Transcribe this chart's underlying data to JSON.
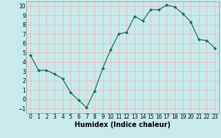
{
  "xlabel": "Humidex (Indice chaleur)",
  "x": [
    0,
    1,
    2,
    3,
    4,
    5,
    6,
    7,
    8,
    9,
    10,
    11,
    12,
    13,
    14,
    15,
    16,
    17,
    18,
    19,
    20,
    21,
    22,
    23
  ],
  "y": [
    4.7,
    3.1,
    3.1,
    2.7,
    2.2,
    0.7,
    -0.1,
    -0.9,
    0.9,
    3.3,
    5.3,
    7.0,
    7.2,
    8.9,
    8.4,
    9.6,
    9.6,
    10.1,
    9.9,
    9.2,
    8.3,
    6.4,
    6.3,
    5.5
  ],
  "line_color": "#1a6b5e",
  "marker": "D",
  "marker_size": 2.0,
  "bg_color": "#c8eaea",
  "grid_color": "#e8b8b8",
  "ylim": [
    -1.5,
    10.5
  ],
  "xlim": [
    -0.5,
    23.5
  ],
  "yticks": [
    -1,
    0,
    1,
    2,
    3,
    4,
    5,
    6,
    7,
    8,
    9,
    10
  ],
  "xticks": [
    0,
    1,
    2,
    3,
    4,
    5,
    6,
    7,
    8,
    9,
    10,
    11,
    12,
    13,
    14,
    15,
    16,
    17,
    18,
    19,
    20,
    21,
    22,
    23
  ],
  "tick_label_fontsize": 5.5,
  "xlabel_fontsize": 7.0
}
